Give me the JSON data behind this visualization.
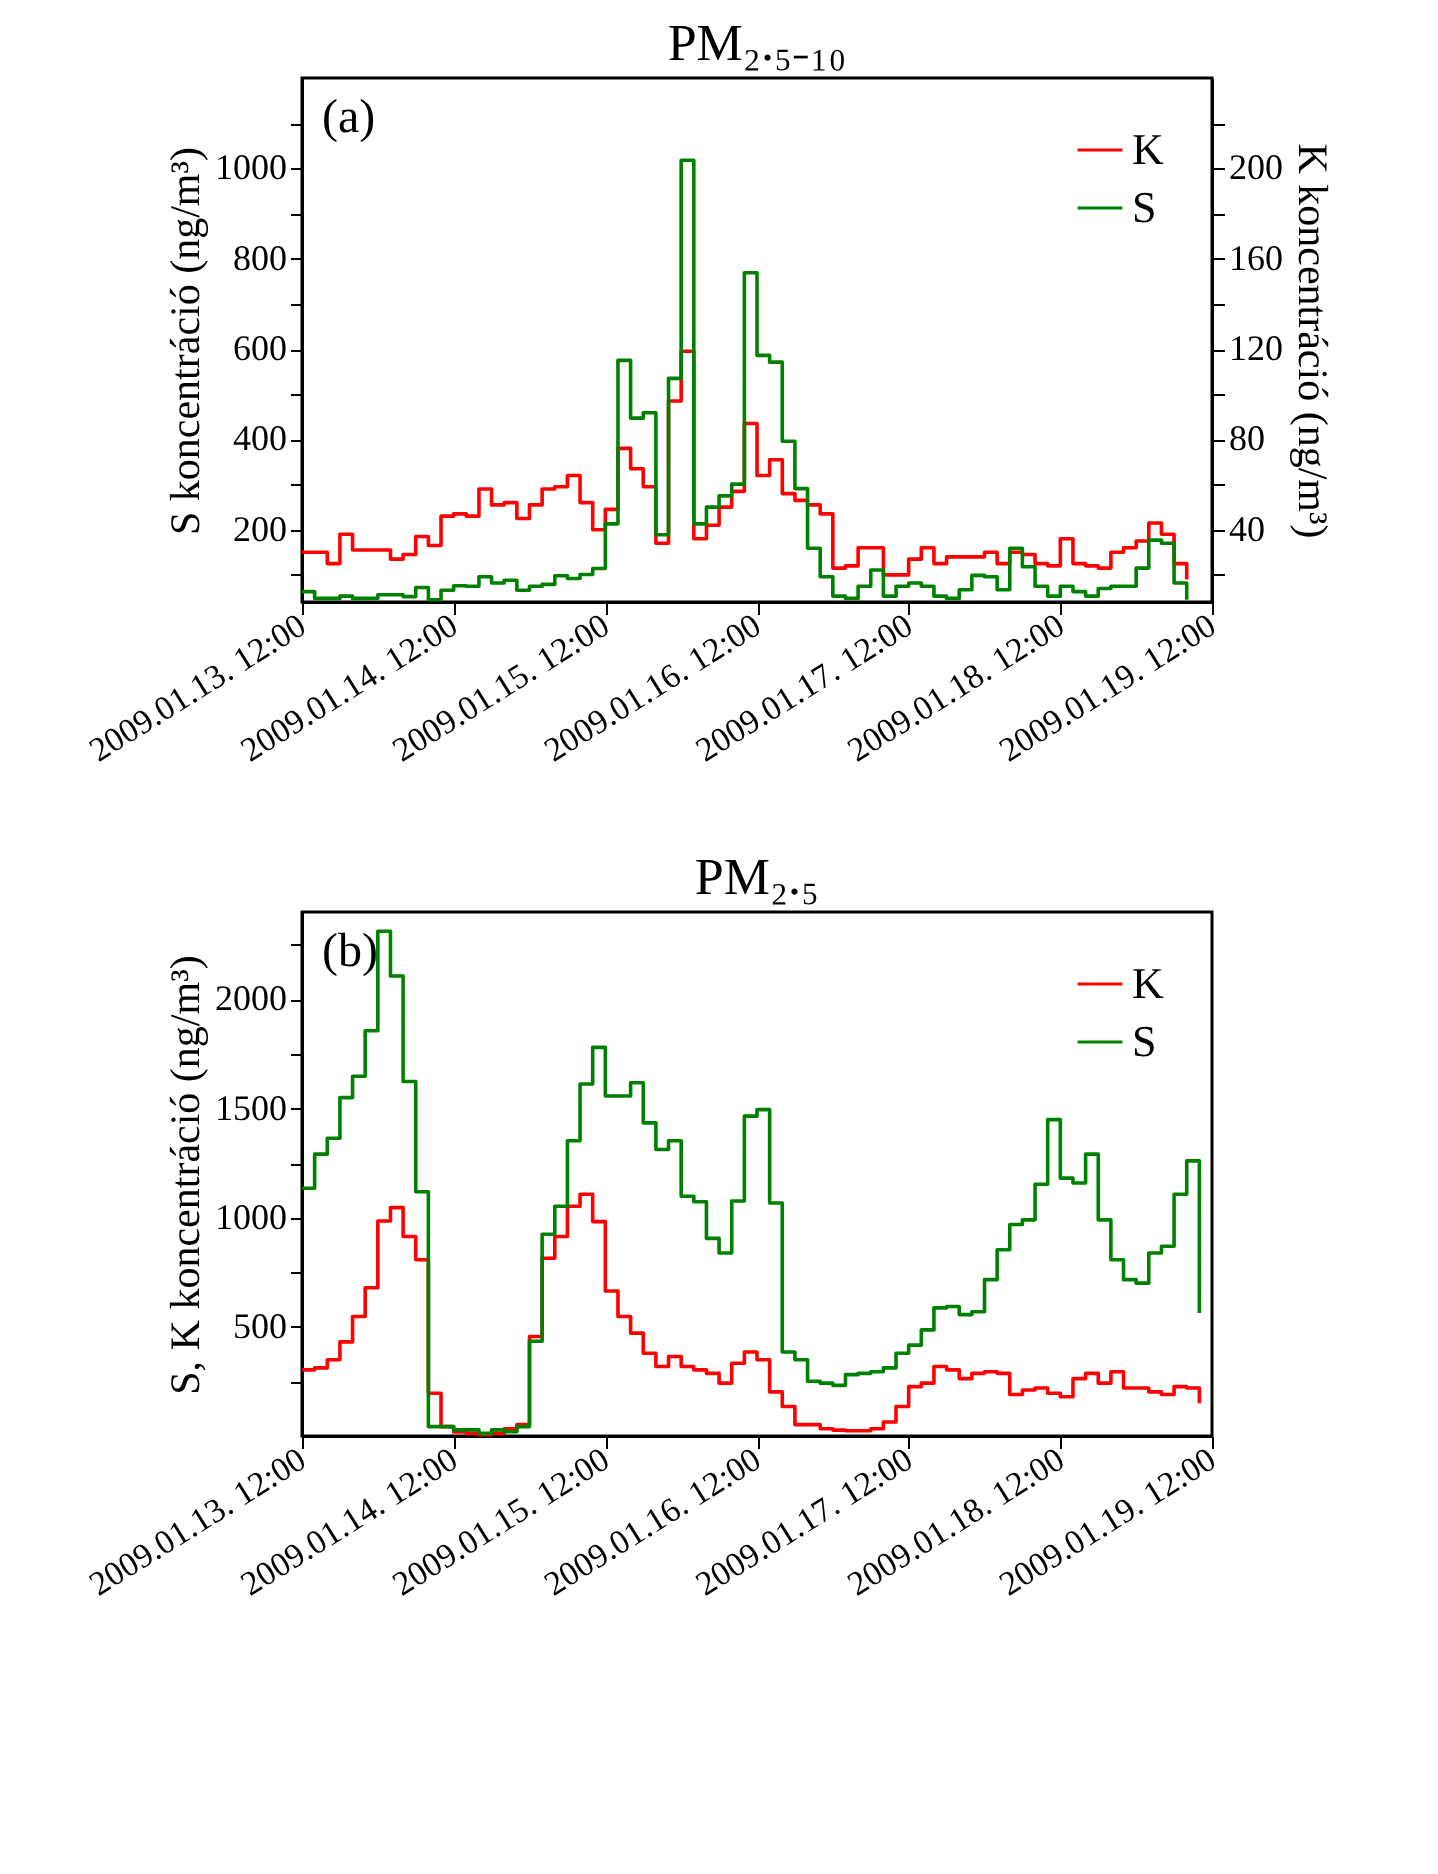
{
  "chart_data": [
    {
      "type": "step",
      "title": "PM₂.₅₋₁₀",
      "ylabel": "S koncentráció (ng/m³)",
      "y2label": "K koncentráció (ng/m³)",
      "annotations": [
        "(a)"
      ],
      "legend": "top right",
      "x": [
        "2009-01-13T12:00",
        "2009-01-13T14:00",
        "2009-01-13T16:00",
        "2009-01-13T18:00",
        "2009-01-13T20:00",
        "2009-01-13T22:00",
        "2009-01-14T00:00",
        "2009-01-14T02:00",
        "2009-01-14T04:00",
        "2009-01-14T06:00",
        "2009-01-14T08:00",
        "2009-01-14T10:00",
        "2009-01-14T12:00",
        "2009-01-14T14:00",
        "2009-01-14T16:00",
        "2009-01-14T18:00",
        "2009-01-14T20:00",
        "2009-01-14T22:00",
        "2009-01-15T00:00",
        "2009-01-15T02:00",
        "2009-01-15T04:00",
        "2009-01-15T06:00",
        "2009-01-15T08:00",
        "2009-01-15T10:00",
        "2009-01-15T12:00",
        "2009-01-15T14:00",
        "2009-01-15T16:00",
        "2009-01-15T18:00",
        "2009-01-15T20:00",
        "2009-01-15T22:00",
        "2009-01-16T00:00",
        "2009-01-16T02:00",
        "2009-01-16T04:00",
        "2009-01-16T06:00",
        "2009-01-16T08:00",
        "2009-01-16T10:00",
        "2009-01-16T12:00",
        "2009-01-16T14:00",
        "2009-01-16T16:00",
        "2009-01-16T18:00",
        "2009-01-16T20:00",
        "2009-01-16T22:00",
        "2009-01-17T00:00",
        "2009-01-17T02:00",
        "2009-01-17T04:00",
        "2009-01-17T06:00",
        "2009-01-17T08:00",
        "2009-01-17T10:00",
        "2009-01-17T12:00",
        "2009-01-17T14:00",
        "2009-01-17T16:00",
        "2009-01-17T18:00",
        "2009-01-17T20:00",
        "2009-01-17T22:00",
        "2009-01-18T00:00",
        "2009-01-18T02:00",
        "2009-01-18T04:00",
        "2009-01-18T06:00",
        "2009-01-18T08:00",
        "2009-01-18T10:00",
        "2009-01-18T12:00",
        "2009-01-18T14:00",
        "2009-01-18T16:00",
        "2009-01-18T18:00",
        "2009-01-18T20:00",
        "2009-01-18T22:00",
        "2009-01-19T00:00",
        "2009-01-19T02:00",
        "2009-01-19T04:00",
        "2009-01-19T06:00",
        "2009-01-19T08:00"
      ],
      "series": [
        {
          "name": "K",
          "color": "#ff0000",
          "axis": "y2",
          "values": [
            30,
            30,
            25,
            38,
            31,
            31,
            31,
            27,
            29,
            37,
            33,
            46,
            47,
            46,
            58,
            51,
            52,
            45,
            51,
            58,
            59,
            64,
            52,
            40,
            49,
            76,
            67,
            59,
            34,
            97,
            119,
            36,
            42,
            50,
            57,
            87,
            64,
            71,
            56,
            53,
            51,
            47,
            23,
            24,
            32,
            32,
            20,
            20,
            27,
            32,
            25,
            28,
            28,
            28,
            30,
            25,
            30,
            29,
            25,
            24,
            36,
            25,
            24,
            23,
            30,
            32,
            35,
            43,
            38,
            25,
            18
          ]
        },
        {
          "name": "S",
          "color": "#008000",
          "values": [
            63,
            48,
            48,
            53,
            48,
            48,
            56,
            56,
            52,
            72,
            45,
            66,
            76,
            75,
            96,
            82,
            88,
            66,
            75,
            79,
            98,
            92,
            101,
            114,
            213,
            575,
            447,
            459,
            189,
            535,
            1018,
            213,
            250,
            275,
            301,
            769,
            586,
            571,
            396,
            291,
            159,
            96,
            53,
            48,
            75,
            111,
            53,
            75,
            82,
            75,
            53,
            48,
            67,
            99,
            96,
            67,
            159,
            118,
            75,
            53,
            75,
            63,
            53,
            70,
            75,
            75,
            115,
            177,
            170,
            82,
            45
          ]
        }
      ],
      "xlim": [
        "2009-01-13T12:00",
        "2009-01-19T12:00"
      ],
      "xticks": [
        {
          "value": "2009-01-13T12:00",
          "label": "2009.01.13. 12:00"
        },
        {
          "value": "2009-01-14T12:00",
          "label": "2009.01.14. 12:00"
        },
        {
          "value": "2009-01-15T12:00",
          "label": "2009.01.15. 12:00"
        },
        {
          "value": "2009-01-16T12:00",
          "label": "2009.01.16. 12:00"
        },
        {
          "value": "2009-01-17T12:00",
          "label": "2009.01.17. 12:00"
        },
        {
          "value": "2009-01-18T12:00",
          "label": "2009.01.18. 12:00"
        },
        {
          "value": "2009-01-19T12:00",
          "label": "2009.01.19. 12:00"
        }
      ],
      "ylim": [
        40,
        1200
      ],
      "yticks": [
        {
          "value": 100,
          "label": null
        },
        200,
        {
          "value": 300,
          "label": null
        },
        400,
        {
          "value": 500,
          "label": null
        },
        600,
        {
          "value": 700,
          "label": null
        },
        800,
        {
          "value": 900,
          "label": null
        },
        1000,
        {
          "value": 1100,
          "label": null
        }
      ],
      "y2lim": [
        8,
        240
      ],
      "y2ticks": [
        {
          "value": 20,
          "label": null
        },
        40,
        {
          "value": 60,
          "label": null
        },
        80,
        {
          "value": 100,
          "label": null
        },
        120,
        {
          "value": 140,
          "label": null
        },
        160,
        {
          "value": 180,
          "label": null
        },
        200,
        {
          "value": 220,
          "label": null
        }
      ]
    },
    {
      "type": "step",
      "title": "PM₂.₅",
      "ylabel": "S, K koncentráció (ng/m³)",
      "annotations": [
        "(b)"
      ],
      "legend": "top right",
      "x": [
        "2009-01-13T12:00",
        "2009-01-13T14:00",
        "2009-01-13T16:00",
        "2009-01-13T18:00",
        "2009-01-13T20:00",
        "2009-01-13T22:00",
        "2009-01-14T00:00",
        "2009-01-14T02:00",
        "2009-01-14T04:00",
        "2009-01-14T06:00",
        "2009-01-14T08:00",
        "2009-01-14T10:00",
        "2009-01-14T12:00",
        "2009-01-14T14:00",
        "2009-01-14T16:00",
        "2009-01-14T18:00",
        "2009-01-14T20:00",
        "2009-01-14T22:00",
        "2009-01-15T00:00",
        "2009-01-15T02:00",
        "2009-01-15T04:00",
        "2009-01-15T06:00",
        "2009-01-15T08:00",
        "2009-01-15T10:00",
        "2009-01-15T12:00",
        "2009-01-15T14:00",
        "2009-01-15T16:00",
        "2009-01-15T18:00",
        "2009-01-15T20:00",
        "2009-01-15T22:00",
        "2009-01-16T00:00",
        "2009-01-16T02:00",
        "2009-01-16T04:00",
        "2009-01-16T06:00",
        "2009-01-16T08:00",
        "2009-01-16T10:00",
        "2009-01-16T12:00",
        "2009-01-16T14:00",
        "2009-01-16T16:00",
        "2009-01-16T18:00",
        "2009-01-16T20:00",
        "2009-01-16T22:00",
        "2009-01-17T00:00",
        "2009-01-17T02:00",
        "2009-01-17T04:00",
        "2009-01-17T06:00",
        "2009-01-17T08:00",
        "2009-01-17T10:00",
        "2009-01-17T12:00",
        "2009-01-17T14:00",
        "2009-01-17T16:00",
        "2009-01-17T18:00",
        "2009-01-17T20:00",
        "2009-01-17T22:00",
        "2009-01-18T00:00",
        "2009-01-18T02:00",
        "2009-01-18T04:00",
        "2009-01-18T06:00",
        "2009-01-18T08:00",
        "2009-01-18T10:00",
        "2009-01-18T12:00",
        "2009-01-18T14:00",
        "2009-01-18T16:00",
        "2009-01-18T18:00",
        "2009-01-18T20:00",
        "2009-01-18T22:00",
        "2009-01-19T00:00",
        "2009-01-19T02:00",
        "2009-01-19T04:00",
        "2009-01-19T06:00",
        "2009-01-19T08:00",
        "2009-01-19T10:00"
      ],
      "series": [
        {
          "name": "K",
          "color": "#ff0000",
          "values": [
            303,
            312,
            349,
            431,
            547,
            679,
            985,
            1046,
            914,
            807,
            196,
            43,
            18,
            12,
            6,
            12,
            33,
            52,
            456,
            814,
            914,
            1052,
            1107,
            982,
            664,
            547,
            471,
            379,
            318,
            364,
            318,
            303,
            287,
            242,
            333,
            385,
            349,
            202,
            135,
            52,
            52,
            33,
            27,
            24,
            24,
            33,
            64,
            135,
            226,
            242,
            318,
            303,
            263,
            287,
            294,
            287,
            190,
            211,
            220,
            196,
            180,
            263,
            287,
            242,
            294,
            220,
            220,
            202,
            190,
            226,
            220,
            150
          ]
        },
        {
          "name": "S",
          "color": "#008000",
          "values": [
            1135,
            1291,
            1364,
            1550,
            1648,
            1856,
            2312,
            2107,
            1624,
            1119,
            43,
            43,
            28,
            28,
            12,
            28,
            20,
            43,
            434,
            924,
            1052,
            1352,
            1612,
            1780,
            1557,
            1557,
            1618,
            1434,
            1312,
            1352,
            1098,
            1073,
            905,
            838,
            1076,
            1465,
            1495,
            1067,
            385,
            349,
            251,
            242,
            232,
            281,
            287,
            294,
            312,
            379,
            416,
            486,
            587,
            593,
            556,
            569,
            716,
            853,
            969,
            990,
            1153,
            1449,
            1181,
            1159,
            1291,
            990,
            807,
            716,
            700,
            838,
            869,
            1107,
            1260,
            563
          ]
        }
      ],
      "xlim": [
        "2009-01-13T12:00",
        "2009-01-19T12:00"
      ],
      "xticks": [
        {
          "value": "2009-01-13T12:00",
          "label": "2009.01.13. 12:00"
        },
        {
          "value": "2009-01-14T12:00",
          "label": "2009.01.14. 12:00"
        },
        {
          "value": "2009-01-15T12:00",
          "label": "2009.01.15. 12:00"
        },
        {
          "value": "2009-01-16T12:00",
          "label": "2009.01.16. 12:00"
        },
        {
          "value": "2009-01-17T12:00",
          "label": "2009.01.17. 12:00"
        },
        {
          "value": "2009-01-18T12:00",
          "label": "2009.01.18. 12:00"
        },
        {
          "value": "2009-01-19T12:00",
          "label": "2009.01.19. 12:00"
        }
      ],
      "ylim": [
        0,
        2400
      ],
      "yticks": [
        {
          "value": 250,
          "label": null
        },
        500,
        {
          "value": 750,
          "label": null
        },
        1000,
        {
          "value": 1250,
          "label": null
        },
        1500,
        {
          "value": 1750,
          "label": null
        },
        2000,
        {
          "value": 2250,
          "label": null
        }
      ]
    }
  ]
}
